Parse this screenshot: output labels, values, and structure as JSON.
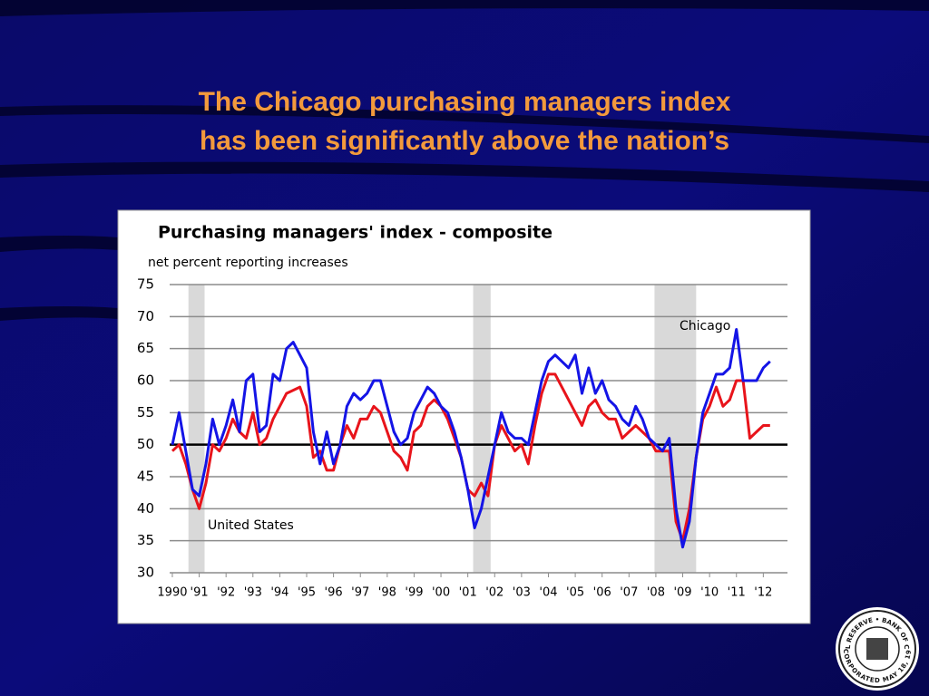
{
  "slide": {
    "title_lines": [
      "The Chicago purchasing managers index",
      "has been significantly above the nation’s"
    ],
    "seal": {
      "top": "FEDERAL RESERVE • BANK OF CHICAGO",
      "bottom": "INCORPORATED MAY 18, 1914"
    }
  },
  "chart_data": {
    "type": "line",
    "title": "Purchasing managers' index - composite",
    "y_label": "net percent  reporting increases",
    "x": [
      1990,
      1990.25,
      1990.5,
      1990.75,
      1991,
      1991.25,
      1991.5,
      1991.75,
      1992,
      1992.25,
      1992.5,
      1992.75,
      1993,
      1993.25,
      1993.5,
      1993.75,
      1994,
      1994.25,
      1994.5,
      1994.75,
      1995,
      1995.25,
      1995.5,
      1995.75,
      1996,
      1996.25,
      1996.5,
      1996.75,
      1997,
      1997.25,
      1997.5,
      1997.75,
      1998,
      1998.25,
      1998.5,
      1998.75,
      1999,
      1999.25,
      1999.5,
      1999.75,
      2000,
      2000.25,
      2000.5,
      2000.75,
      2001,
      2001.25,
      2001.5,
      2001.75,
      2002,
      2002.25,
      2002.5,
      2002.75,
      2003,
      2003.25,
      2003.5,
      2003.75,
      2004,
      2004.25,
      2004.5,
      2004.75,
      2005,
      2005.25,
      2005.5,
      2005.75,
      2006,
      2006.25,
      2006.5,
      2006.75,
      2007,
      2007.25,
      2007.5,
      2007.75,
      2008,
      2008.25,
      2008.5,
      2008.75,
      2009,
      2009.25,
      2009.5,
      2009.75,
      2010,
      2010.25,
      2010.5,
      2010.75,
      2011,
      2011.25,
      2011.5,
      2011.75,
      2012,
      2012.25
    ],
    "series": [
      {
        "name": "United States",
        "color": "#e8141b",
        "values": [
          49,
          50,
          47,
          43,
          40,
          44,
          50,
          49,
          51,
          54,
          52,
          51,
          55,
          50,
          51,
          54,
          56,
          58,
          58.5,
          59,
          56,
          48,
          49,
          46,
          46,
          50,
          53,
          51,
          54,
          54,
          56,
          55,
          52,
          49,
          48,
          46,
          52,
          53,
          56,
          57,
          56,
          54,
          51,
          48,
          43,
          42,
          44,
          42,
          50,
          53,
          51,
          49,
          50,
          47,
          53,
          58,
          61,
          61,
          59,
          57,
          55,
          53,
          56,
          57,
          55,
          54,
          54,
          51,
          52,
          53,
          52,
          51,
          49,
          49,
          49,
          38,
          35,
          40,
          48,
          54,
          56,
          59,
          56,
          57,
          60,
          60,
          51,
          52,
          53,
          53
        ]
      },
      {
        "name": "Chicago",
        "color": "#1414e6",
        "values": [
          50,
          55,
          49,
          43,
          42,
          47,
          54,
          50,
          53,
          57,
          52,
          60,
          61,
          52,
          53,
          61,
          60,
          65,
          66,
          64,
          62,
          52,
          47,
          52,
          47,
          50,
          56,
          58,
          57,
          58,
          60,
          60,
          56,
          52,
          50,
          51,
          55,
          57,
          59,
          58,
          56,
          55,
          52,
          48,
          43,
          37,
          40,
          45,
          50,
          55,
          52,
          51,
          51,
          50,
          55,
          60,
          63,
          64,
          63,
          62,
          64,
          58,
          62,
          58,
          60,
          57,
          56,
          54,
          53,
          56,
          54,
          51,
          50,
          49,
          51,
          40,
          34,
          38,
          48,
          55,
          58,
          61,
          61,
          62,
          68,
          60,
          60,
          60,
          62,
          63
        ]
      }
    ],
    "recessions": [
      [
        1990.6,
        1991.2
      ],
      [
        2001.2,
        2001.85
      ],
      [
        2007.95,
        2009.5
      ]
    ],
    "reference_line": 50,
    "xlim": [
      1989.9,
      2012.9
    ],
    "xticks": [
      {
        "value": 1990,
        "label": "1990"
      },
      {
        "value": 1991,
        "label": "'91"
      },
      {
        "value": 1992,
        "label": "'92"
      },
      {
        "value": 1993,
        "label": "'93"
      },
      {
        "value": 1994,
        "label": "'94"
      },
      {
        "value": 1995,
        "label": "'95"
      },
      {
        "value": 1996,
        "label": "'96"
      },
      {
        "value": 1997,
        "label": "'97"
      },
      {
        "value": 1998,
        "label": "'98"
      },
      {
        "value": 1999,
        "label": "'99"
      },
      {
        "value": 2000,
        "label": "'00"
      },
      {
        "value": 2001,
        "label": "'01"
      },
      {
        "value": 2002,
        "label": "'02"
      },
      {
        "value": 2003,
        "label": "'03"
      },
      {
        "value": 2004,
        "label": "'04"
      },
      {
        "value": 2005,
        "label": "'05"
      },
      {
        "value": 2006,
        "label": "'06"
      },
      {
        "value": 2007,
        "label": "'07"
      },
      {
        "value": 2008,
        "label": "'08"
      },
      {
        "value": 2009,
        "label": "'09"
      },
      {
        "value": 2010,
        "label": "'10"
      },
      {
        "value": 2011,
        "label": "'11"
      },
      {
        "value": 2012,
        "label": "'12"
      }
    ],
    "ylim": [
      30,
      75
    ],
    "yticks": [
      30,
      35,
      40,
      45,
      50,
      55,
      60,
      65,
      70,
      75
    ],
    "grid": true
  }
}
